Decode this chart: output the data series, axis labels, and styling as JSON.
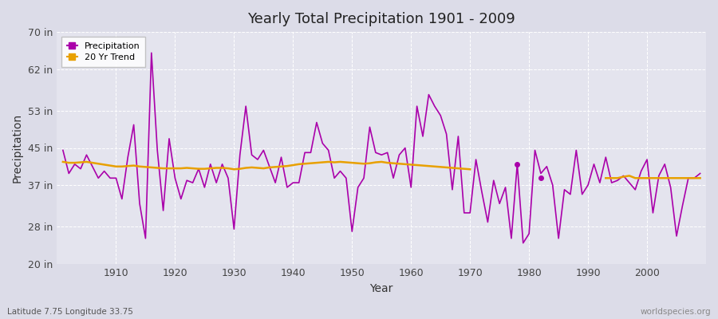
{
  "title": "Yearly Total Precipitation 1901 - 2009",
  "xlabel": "Year",
  "ylabel": "Precipitation",
  "subtitle": "Latitude 7.75 Longitude 33.75",
  "credit": "worldspecies.org",
  "ylim": [
    20,
    70
  ],
  "yticks": [
    20,
    28,
    37,
    45,
    53,
    62,
    70
  ],
  "ytick_labels": [
    "20 in",
    "28 in",
    "37 in",
    "45 in",
    "53 in",
    "62 in",
    "70 in"
  ],
  "precip_color": "#AA00AA",
  "trend_color": "#E8A000",
  "bg_color": "#DCDCE8",
  "plot_bg_color": "#E4E4EE",
  "years": [
    1901,
    1902,
    1903,
    1904,
    1905,
    1906,
    1907,
    1908,
    1909,
    1910,
    1911,
    1912,
    1913,
    1914,
    1915,
    1916,
    1917,
    1918,
    1919,
    1920,
    1921,
    1922,
    1923,
    1924,
    1925,
    1926,
    1927,
    1928,
    1929,
    1930,
    1931,
    1932,
    1933,
    1934,
    1935,
    1936,
    1937,
    1938,
    1939,
    1940,
    1941,
    1942,
    1943,
    1944,
    1945,
    1946,
    1947,
    1948,
    1949,
    1950,
    1951,
    1952,
    1953,
    1954,
    1955,
    1956,
    1957,
    1958,
    1959,
    1960,
    1961,
    1962,
    1963,
    1964,
    1965,
    1966,
    1967,
    1968,
    1969,
    1970,
    1971,
    1972,
    1973,
    1974,
    1975,
    1976,
    1977,
    1978,
    1979,
    1980,
    1981,
    1982,
    1983,
    1984,
    1985,
    1986,
    1987,
    1988,
    1989,
    1990,
    1991,
    1992,
    1993,
    1994,
    1995,
    1996,
    1997,
    1998,
    1999,
    2000,
    2001,
    2002,
    2003,
    2004,
    2005,
    2006,
    2007,
    2008,
    2009
  ],
  "precip": [
    44.5,
    39.5,
    41.5,
    40.5,
    43.5,
    41.0,
    38.5,
    40.0,
    38.5,
    38.5,
    34.0,
    43.0,
    50.0,
    33.0,
    25.5,
    65.5,
    44.5,
    31.5,
    47.0,
    38.5,
    34.0,
    38.0,
    37.5,
    40.5,
    36.5,
    41.5,
    37.5,
    41.5,
    38.5,
    27.5,
    43.5,
    54.0,
    43.5,
    42.5,
    44.5,
    41.0,
    37.5,
    43.0,
    36.5,
    37.5,
    37.5,
    44.0,
    44.0,
    50.5,
    46.0,
    44.5,
    38.5,
    40.0,
    38.5,
    27.0,
    36.5,
    38.5,
    49.5,
    44.0,
    43.5,
    44.0,
    38.5,
    43.5,
    45.0,
    36.5,
    54.0,
    47.5,
    56.5,
    54.0,
    52.0,
    48.0,
    36.0,
    47.5,
    31.0,
    31.0,
    42.5,
    35.5,
    29.0,
    38.0,
    33.0,
    36.5,
    25.5,
    41.5,
    24.5,
    26.5,
    44.5,
    39.5,
    41.0,
    37.0,
    25.5,
    36.0,
    35.0,
    44.5,
    35.0,
    37.0,
    41.5,
    37.5,
    43.0,
    37.5,
    38.0,
    39.0,
    37.5,
    36.0,
    40.0,
    42.5,
    31.0,
    39.0,
    41.5,
    36.5,
    26.0,
    32.5,
    38.5,
    38.5,
    39.5
  ],
  "trend_years": [
    1901,
    1902,
    1903,
    1904,
    1905,
    1906,
    1907,
    1908,
    1909,
    1910,
    1911,
    1912,
    1913,
    1914,
    1915,
    1916,
    1917,
    1918,
    1919,
    1920,
    1921,
    1922,
    1923,
    1924,
    1925,
    1926,
    1927,
    1928,
    1929,
    1930,
    1931,
    1932,
    1933,
    1934,
    1935,
    1936,
    1937,
    1938,
    1939,
    1940,
    1941,
    1942,
    1943,
    1944,
    1945,
    1946,
    1947,
    1948,
    1949,
    1950,
    1951,
    1952,
    1953,
    1954,
    1955,
    1956,
    1957,
    1958,
    1959,
    1960,
    1961,
    1962,
    1963,
    1964,
    1965,
    1966,
    1967,
    1968,
    1969,
    1970,
    1993,
    1994,
    1995,
    1996,
    1997,
    1998,
    1999,
    2000,
    2001,
    2002,
    2003,
    2004,
    2005,
    2006,
    2007,
    2008,
    2009
  ],
  "trend": [
    42.0,
    41.8,
    41.8,
    41.9,
    42.0,
    41.8,
    41.6,
    41.4,
    41.2,
    41.0,
    41.0,
    41.1,
    41.2,
    41.0,
    40.9,
    40.8,
    40.7,
    40.6,
    40.6,
    40.6,
    40.6,
    40.7,
    40.6,
    40.5,
    40.5,
    40.6,
    40.7,
    40.7,
    40.6,
    40.4,
    40.5,
    40.7,
    40.8,
    40.7,
    40.6,
    40.8,
    40.9,
    41.0,
    41.1,
    41.3,
    41.5,
    41.6,
    41.7,
    41.8,
    41.9,
    42.0,
    41.9,
    42.0,
    41.9,
    41.8,
    41.7,
    41.6,
    41.7,
    41.9,
    42.0,
    41.8,
    41.7,
    41.6,
    41.5,
    41.4,
    41.3,
    41.2,
    41.1,
    41.0,
    40.9,
    40.8,
    40.7,
    40.6,
    40.5,
    40.4,
    38.5,
    38.5,
    38.5,
    38.8,
    39.0,
    38.5,
    38.5,
    38.5,
    38.5,
    38.5,
    38.5,
    38.5,
    38.5,
    38.5,
    38.5,
    38.5,
    38.5
  ],
  "isolated_dots": [
    {
      "year": 1978,
      "value": 41.5
    },
    {
      "year": 1982,
      "value": 38.5
    }
  ],
  "xlim": [
    1900,
    2010
  ],
  "xticks": [
    1910,
    1920,
    1930,
    1940,
    1950,
    1960,
    1970,
    1980,
    1990,
    2000
  ]
}
